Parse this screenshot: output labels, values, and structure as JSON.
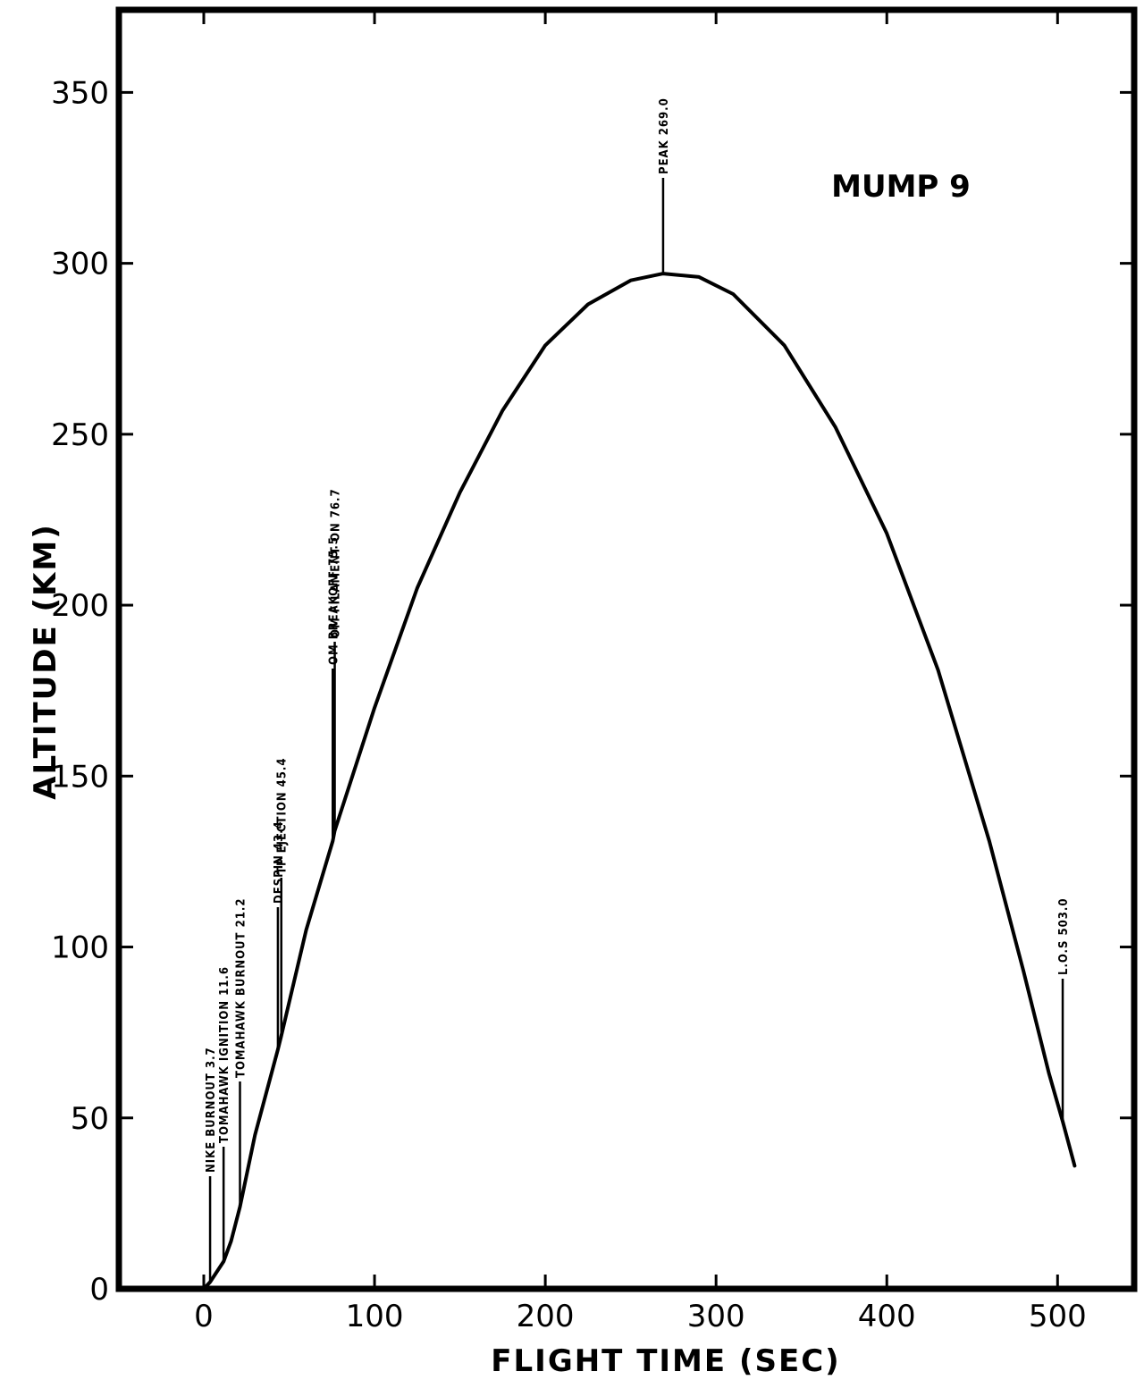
{
  "chart_data": {
    "type": "line",
    "title": "MUMP 9",
    "xlabel": "FLIGHT TIME (SEC)",
    "ylabel": "ALTITUDE (KM)",
    "xlim": [
      -50,
      550
    ],
    "ylim": [
      0,
      370
    ],
    "xticks": [
      0,
      100,
      200,
      300,
      400,
      500
    ],
    "yticks": [
      0,
      50,
      100,
      150,
      200,
      250,
      300,
      350
    ],
    "grid": false,
    "series": [
      {
        "values": [
          [
            0,
            0
          ],
          [
            3.7,
            2
          ],
          [
            11.6,
            8
          ],
          [
            16,
            14
          ],
          [
            21.2,
            24
          ],
          [
            30,
            45
          ],
          [
            43.4,
            70
          ],
          [
            45.4,
            74
          ],
          [
            60,
            105
          ],
          [
            75.5,
            131
          ],
          [
            76.7,
            134
          ],
          [
            100,
            170
          ],
          [
            125,
            205
          ],
          [
            150,
            233
          ],
          [
            175,
            257
          ],
          [
            200,
            276
          ],
          [
            225,
            288
          ],
          [
            250,
            295
          ],
          [
            269,
            297
          ],
          [
            290,
            296
          ],
          [
            310,
            291
          ],
          [
            340,
            276
          ],
          [
            370,
            252
          ],
          [
            400,
            221
          ],
          [
            430,
            181
          ],
          [
            460,
            131
          ],
          [
            480,
            93
          ],
          [
            495,
            63
          ],
          [
            503,
            49
          ],
          [
            510,
            36
          ]
        ]
      }
    ],
    "annotations": [
      {
        "text": "NIKE BURNOUT 3.7",
        "x": 3.7
      },
      {
        "text": "TOMAHAWK IGNITION 11.6",
        "x": 11.6
      },
      {
        "text": "TOMAHAWK BURNOUT 21.2",
        "x": 21.2
      },
      {
        "text": "DESPIN 43.4",
        "x": 43.4
      },
      {
        "text": "TP EJECTION 45.4",
        "x": 45.4
      },
      {
        "text": "OM BREAKOFF 75.5",
        "x": 75.5
      },
      {
        "text": "OM FILAMENT ON 76.7",
        "x": 76.7
      },
      {
        "text": "PEAK 269.0",
        "x": 269.0
      },
      {
        "text": "L.O.S 503.0",
        "x": 503.0
      }
    ]
  }
}
